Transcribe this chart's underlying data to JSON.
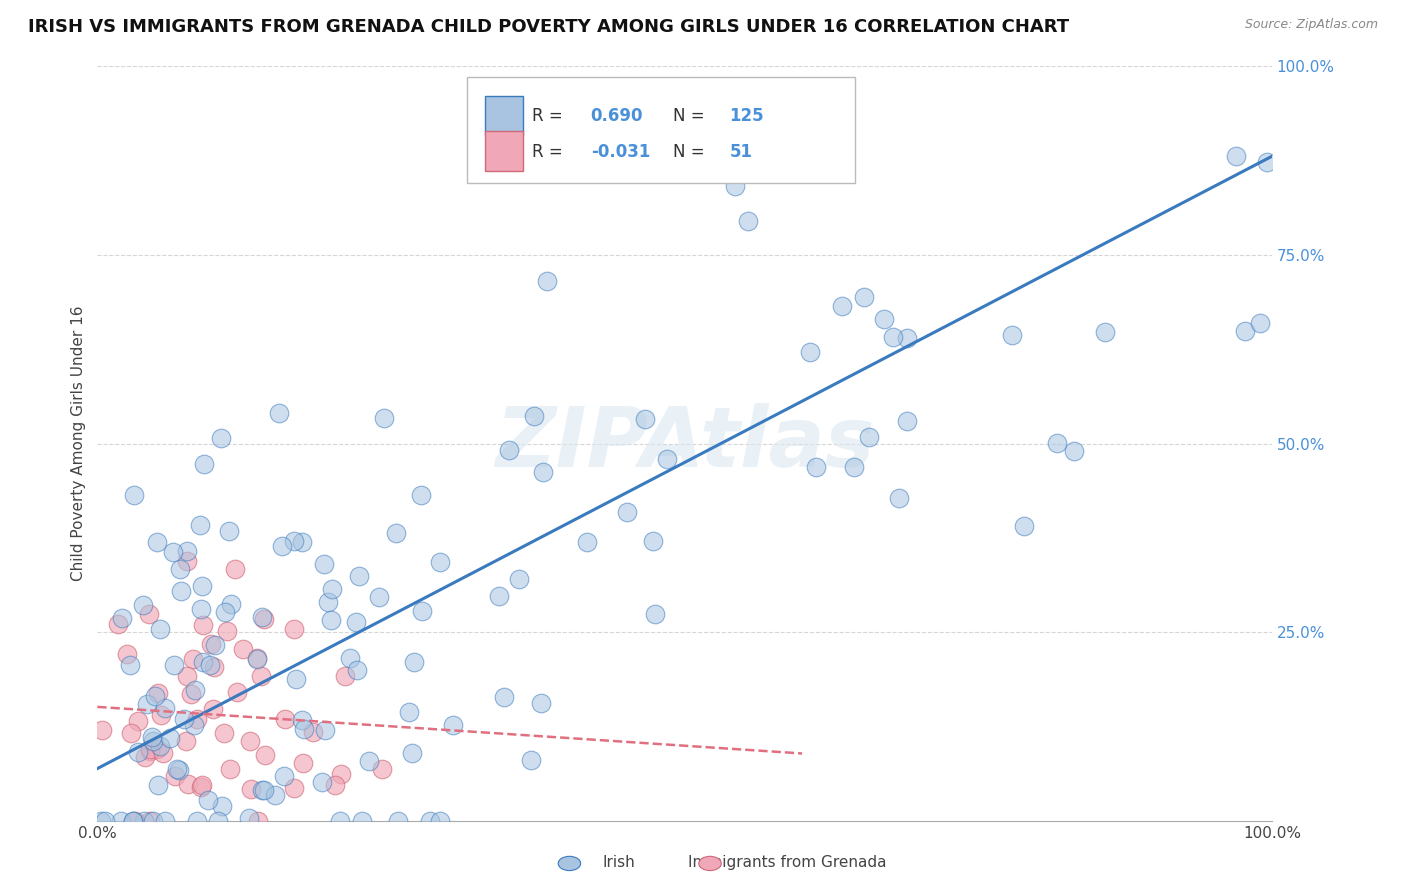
{
  "title": "IRISH VS IMMIGRANTS FROM GRENADA CHILD POVERTY AMONG GIRLS UNDER 16 CORRELATION CHART",
  "source": "Source: ZipAtlas.com",
  "ylabel": "Child Poverty Among Girls Under 16",
  "xlim": [
    0,
    1
  ],
  "ylim": [
    0,
    1
  ],
  "xtick_labels": [
    "0.0%",
    "",
    "",
    "",
    "100.0%"
  ],
  "xtick_vals": [
    0,
    0.25,
    0.5,
    0.75,
    1.0
  ],
  "ytick_labels": [
    "25.0%",
    "50.0%",
    "75.0%",
    "100.0%"
  ],
  "ytick_vals": [
    0.25,
    0.5,
    0.75,
    1.0
  ],
  "irish_R": 0.69,
  "irish_N": 125,
  "grenada_R": -0.031,
  "grenada_N": 51,
  "irish_color": "#a8c4e0",
  "grenada_color": "#f0a8b8",
  "irish_line_color": "#3a7abf",
  "grenada_line_color": "#e07080",
  "ytick_color": "#4a90d9",
  "legend_irish_label": "Irish",
  "legend_grenada_label": "Immigrants from Grenada",
  "watermark": "ZIPAtlas",
  "background_color": "#ffffff",
  "grid_color": "#cccccc",
  "title_fontsize": 13,
  "axis_label_fontsize": 11,
  "tick_fontsize": 11
}
